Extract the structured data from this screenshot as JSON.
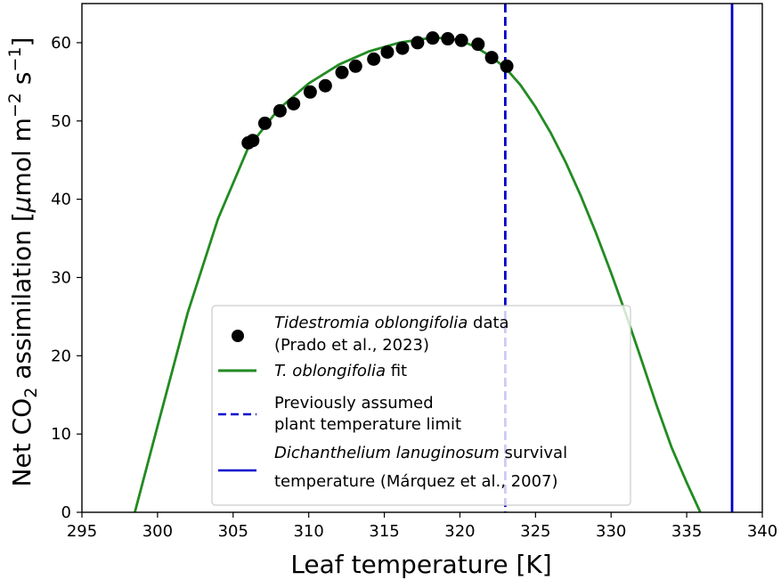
{
  "chart_data": {
    "type": "scatter",
    "xlabel": "Leaf temperature [K]",
    "ylabel": {
      "prefix": "Net CO",
      "sub": "2",
      "mid": " assimilation [",
      "mu": "μ",
      "unit": "mol m",
      "exp1": "−2",
      "space": " s",
      "exp2": "−1",
      "close": "]"
    },
    "xlim": [
      295,
      340
    ],
    "ylim": [
      0,
      65
    ],
    "xticks": [
      295,
      300,
      305,
      310,
      315,
      320,
      325,
      330,
      335,
      340
    ],
    "yticks": [
      0,
      10,
      20,
      30,
      40,
      50,
      60
    ],
    "grid": false,
    "legend_position": "lower-center",
    "series": [
      {
        "kind": "scatter",
        "color": "#000000",
        "points": [
          [
            306.0,
            47.2
          ],
          [
            306.3,
            47.5
          ],
          [
            307.1,
            49.7
          ],
          [
            308.1,
            51.3
          ],
          [
            309.0,
            52.2
          ],
          [
            310.1,
            53.7
          ],
          [
            311.1,
            54.5
          ],
          [
            312.2,
            56.2
          ],
          [
            313.1,
            57.0
          ],
          [
            314.3,
            57.9
          ],
          [
            315.2,
            58.8
          ],
          [
            316.2,
            59.3
          ],
          [
            317.2,
            60.0
          ],
          [
            318.2,
            60.6
          ],
          [
            319.2,
            60.5
          ],
          [
            320.1,
            60.3
          ],
          [
            321.2,
            59.8
          ],
          [
            322.1,
            58.1
          ],
          [
            323.1,
            57.0
          ]
        ]
      },
      {
        "kind": "line",
        "color": "#228b22",
        "points": [
          [
            298.5,
            0.0
          ],
          [
            300.0,
            11.0
          ],
          [
            302.0,
            25.5
          ],
          [
            304.0,
            37.5
          ],
          [
            306.0,
            46.6
          ],
          [
            308.0,
            51.5
          ],
          [
            310.0,
            54.8
          ],
          [
            312.0,
            57.2
          ],
          [
            314.0,
            58.9
          ],
          [
            316.0,
            60.0
          ],
          [
            318.0,
            60.6
          ],
          [
            319.0,
            60.6
          ],
          [
            320.0,
            60.3
          ],
          [
            321.0,
            59.5
          ],
          [
            322.0,
            58.3
          ],
          [
            323.0,
            56.8
          ],
          [
            324.0,
            54.6
          ],
          [
            325.0,
            51.8
          ],
          [
            326.0,
            48.5
          ],
          [
            327.0,
            44.7
          ],
          [
            328.0,
            40.4
          ],
          [
            329.0,
            35.7
          ],
          [
            330.0,
            30.6
          ],
          [
            331.0,
            25.2
          ],
          [
            332.0,
            19.5
          ],
          [
            333.0,
            13.7
          ],
          [
            334.0,
            8.3
          ],
          [
            335.0,
            3.8
          ],
          [
            335.9,
            0.0
          ]
        ]
      },
      {
        "kind": "vline",
        "x": 323.0,
        "color": "#0000cc",
        "dashed": true
      },
      {
        "kind": "vline",
        "x": 338.0,
        "color": "#0000cc",
        "dashed": false
      }
    ],
    "legend": [
      {
        "symbol": "dot",
        "color": "#000000",
        "line1_italic": "Tidestromia oblongifolia",
        "line1_rest": " data",
        "line2": "(Prado et al., 2023)"
      },
      {
        "symbol": "line",
        "color": "#228b22",
        "line1_italic": "T.  oblongifolia",
        "line1_rest": " fit",
        "line2": ""
      },
      {
        "symbol": "dashed",
        "color": "#0000cc",
        "line1_italic": "",
        "line1_rest": "Previously assumed",
        "line2": "plant temperature limit"
      },
      {
        "symbol": "solid",
        "color": "#0000cc",
        "line1_italic": "Dichanthelium lanuginosum",
        "line1_rest": " survival",
        "line2": "temperature (Márquez et al., 2007)"
      }
    ]
  }
}
